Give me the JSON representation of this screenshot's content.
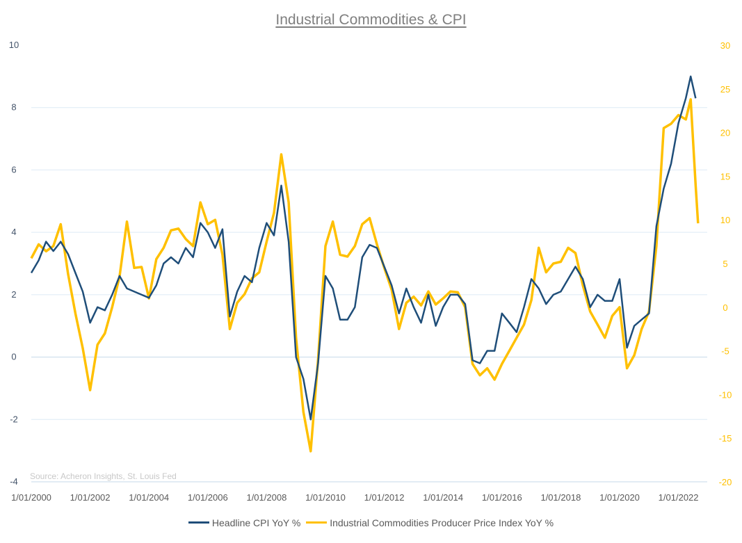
{
  "chart_data": {
    "type": "line",
    "title": "Industrial Commodities & CPI",
    "source": "Source: Acheron Insights, St. Louis Fed",
    "y_left": {
      "range": [
        -4,
        10
      ],
      "ticks": [
        "10",
        "8",
        "6",
        "4",
        "2",
        "0",
        "-2",
        "-4"
      ]
    },
    "y_right": {
      "range": [
        -20,
        30
      ],
      "ticks": [
        "30",
        "25",
        "20",
        "15",
        "10",
        "5",
        "0",
        "-5",
        "-10",
        "-15",
        "-20"
      ]
    },
    "x_ticks": [
      "1/01/2000",
      "1/01/2002",
      "1/01/2004",
      "1/01/2006",
      "1/01/2008",
      "1/01/2010",
      "1/01/2012",
      "1/01/2014",
      "1/01/2016",
      "1/01/2018",
      "1/01/2020",
      "1/01/2022"
    ],
    "grid": true,
    "legend_position": "bottom",
    "x": [
      "2000-01",
      "2000-04",
      "2000-07",
      "2000-10",
      "2001-01",
      "2001-04",
      "2001-07",
      "2001-10",
      "2002-01",
      "2002-04",
      "2002-07",
      "2002-10",
      "2003-01",
      "2003-04",
      "2003-07",
      "2003-10",
      "2004-01",
      "2004-04",
      "2004-07",
      "2004-10",
      "2005-01",
      "2005-04",
      "2005-07",
      "2005-10",
      "2006-01",
      "2006-04",
      "2006-07",
      "2006-10",
      "2007-01",
      "2007-04",
      "2007-07",
      "2007-10",
      "2008-01",
      "2008-04",
      "2008-07",
      "2008-10",
      "2009-01",
      "2009-04",
      "2009-07",
      "2009-10",
      "2010-01",
      "2010-04",
      "2010-07",
      "2010-10",
      "2011-01",
      "2011-04",
      "2011-07",
      "2011-10",
      "2012-01",
      "2012-04",
      "2012-07",
      "2012-10",
      "2013-01",
      "2013-04",
      "2013-07",
      "2013-10",
      "2014-01",
      "2014-04",
      "2014-07",
      "2014-10",
      "2015-01",
      "2015-04",
      "2015-07",
      "2015-10",
      "2016-01",
      "2016-04",
      "2016-07",
      "2016-10",
      "2017-01",
      "2017-04",
      "2017-07",
      "2017-10",
      "2018-01",
      "2018-04",
      "2018-07",
      "2018-10",
      "2019-01",
      "2019-04",
      "2019-07",
      "2019-10",
      "2020-01",
      "2020-04",
      "2020-07",
      "2020-10",
      "2021-01",
      "2021-04",
      "2021-07",
      "2021-10",
      "2022-01",
      "2022-04",
      "2022-06",
      "2022-08",
      "2022-09"
    ],
    "series": [
      {
        "name": "Headline CPI YoY %",
        "axis": "left",
        "color": "#1f4e79",
        "values": [
          2.7,
          3.1,
          3.7,
          3.4,
          3.7,
          3.3,
          2.7,
          2.1,
          1.1,
          1.6,
          1.5,
          2.0,
          2.6,
          2.2,
          2.1,
          2.0,
          1.9,
          2.3,
          3.0,
          3.2,
          3.0,
          3.5,
          3.2,
          4.3,
          4.0,
          3.5,
          4.1,
          1.3,
          2.1,
          2.6,
          2.4,
          3.5,
          4.3,
          3.9,
          5.5,
          3.7,
          0.0,
          -0.7,
          -2.0,
          -0.2,
          2.6,
          2.2,
          1.2,
          1.2,
          1.6,
          3.2,
          3.6,
          3.5,
          2.9,
          2.3,
          1.4,
          2.2,
          1.6,
          1.1,
          2.0,
          1.0,
          1.6,
          2.0,
          2.0,
          1.7,
          -0.1,
          -0.2,
          0.2,
          0.2,
          1.4,
          1.1,
          0.8,
          1.6,
          2.5,
          2.2,
          1.7,
          2.0,
          2.1,
          2.5,
          2.9,
          2.5,
          1.6,
          2.0,
          1.8,
          1.8,
          2.5,
          0.3,
          1.0,
          1.2,
          1.4,
          4.2,
          5.4,
          6.2,
          7.5,
          8.3,
          9.0,
          8.3,
          null
        ]
      },
      {
        "name": "Industrial Commodities Producer Price Index YoY %",
        "axis": "right",
        "color": "#ffc000",
        "values": [
          5.6,
          7.2,
          6.4,
          7.0,
          9.5,
          3.8,
          -0.7,
          -4.7,
          -9.5,
          -4.3,
          -3.0,
          0.0,
          3.5,
          9.8,
          4.5,
          4.6,
          1.0,
          5.5,
          6.8,
          8.8,
          9.0,
          7.8,
          7.0,
          12.0,
          9.5,
          10.0,
          6.0,
          -2.5,
          0.5,
          1.5,
          3.3,
          4.0,
          7.5,
          10.8,
          17.5,
          12.0,
          -3.5,
          -12.0,
          -16.5,
          -6.0,
          7.0,
          9.8,
          6.0,
          5.8,
          7.0,
          9.5,
          10.2,
          7.2,
          4.5,
          2.0,
          -2.5,
          0.5,
          1.2,
          0.2,
          1.8,
          0.3,
          1.0,
          1.8,
          1.7,
          0.0,
          -6.5,
          -7.8,
          -7.0,
          -8.3,
          -6.5,
          -5.0,
          -3.5,
          -2.0,
          0.8,
          6.8,
          4.0,
          5.0,
          5.2,
          6.8,
          6.2,
          2.5,
          -0.5,
          -2.0,
          -3.5,
          -1.0,
          0.0,
          -7.0,
          -5.5,
          -2.5,
          -0.5,
          7.0,
          20.5,
          21.0,
          22.0,
          21.5,
          23.8,
          14.0,
          9.6
        ]
      }
    ]
  }
}
